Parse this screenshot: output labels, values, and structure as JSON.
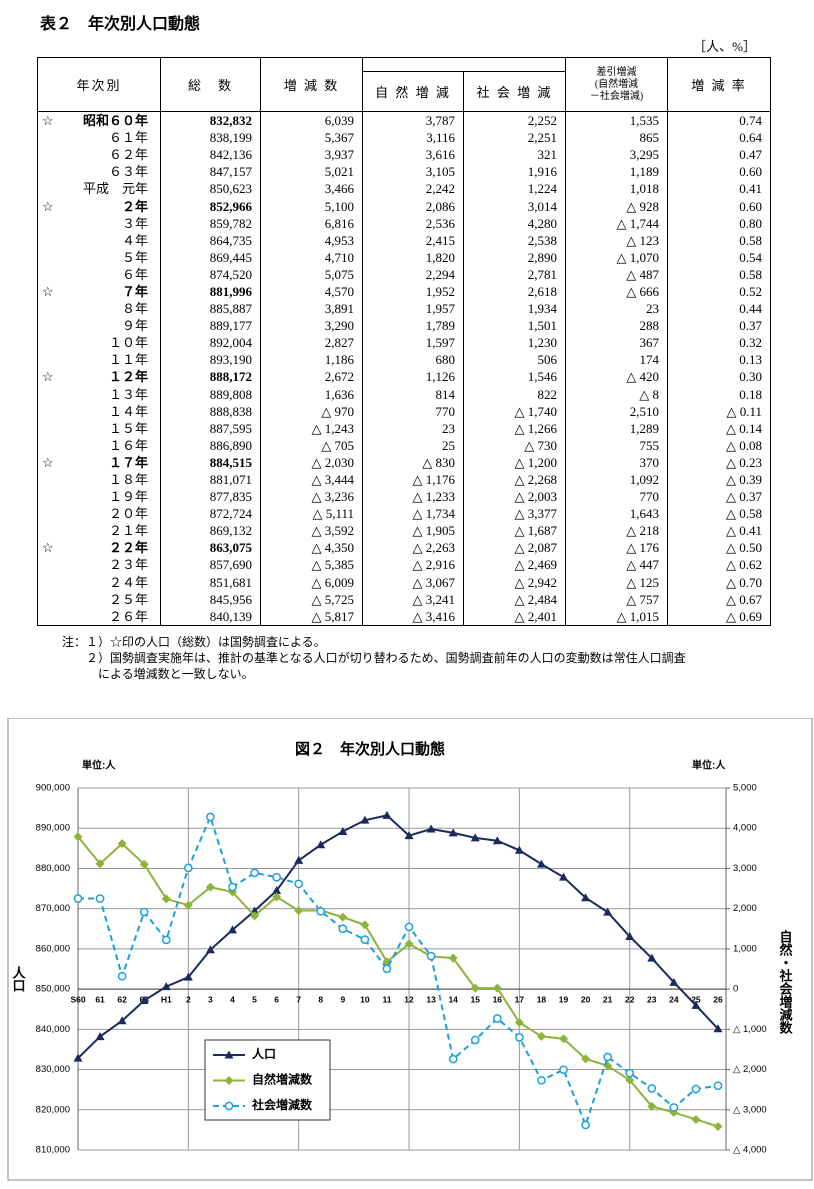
{
  "table": {
    "title": "表２　年次別人口動態",
    "unit": "［人、%］",
    "headers": {
      "year": "年次別",
      "total": "総　数",
      "change": "増 減 数",
      "natural": "自 然 増 減",
      "social": "社 会 増 減",
      "diff": [
        "差引増減",
        "(自然増減",
        "－社会増減)"
      ],
      "rate": "増 減 率"
    },
    "rows": [
      {
        "mark": "☆",
        "year": "昭和６０年",
        "cells": [
          "832,832",
          "6,039",
          "3,787",
          "2,252",
          "1,535",
          "0.74"
        ]
      },
      {
        "year": "６１年",
        "cells": [
          "838,199",
          "5,367",
          "3,116",
          "2,251",
          "865",
          "0.64"
        ]
      },
      {
        "year": "６２年",
        "cells": [
          "842,136",
          "3,937",
          "3,616",
          "321",
          "3,295",
          "0.47"
        ]
      },
      {
        "year": "６３年",
        "cells": [
          "847,157",
          "5,021",
          "3,105",
          "1,916",
          "1,189",
          "0.60"
        ]
      },
      {
        "year": "平成　元年",
        "cells": [
          "850,623",
          "3,466",
          "2,242",
          "1,224",
          "1,018",
          "0.41"
        ]
      },
      {
        "mark": "☆",
        "year": "２年",
        "cells": [
          "852,966",
          "5,100",
          "2,086",
          "3,014",
          "△ 928",
          "0.60"
        ]
      },
      {
        "year": "３年",
        "cells": [
          "859,782",
          "6,816",
          "2,536",
          "4,280",
          "△ 1,744",
          "0.80"
        ]
      },
      {
        "year": "４年",
        "cells": [
          "864,735",
          "4,953",
          "2,415",
          "2,538",
          "△ 123",
          "0.58"
        ]
      },
      {
        "year": "５年",
        "cells": [
          "869,445",
          "4,710",
          "1,820",
          "2,890",
          "△ 1,070",
          "0.54"
        ]
      },
      {
        "year": "６年",
        "cells": [
          "874,520",
          "5,075",
          "2,294",
          "2,781",
          "△ 487",
          "0.58"
        ]
      },
      {
        "mark": "☆",
        "year": "７年",
        "cells": [
          "881,996",
          "4,570",
          "1,952",
          "2,618",
          "△ 666",
          "0.52"
        ]
      },
      {
        "year": "８年",
        "cells": [
          "885,887",
          "3,891",
          "1,957",
          "1,934",
          "23",
          "0.44"
        ]
      },
      {
        "year": "９年",
        "cells": [
          "889,177",
          "3,290",
          "1,789",
          "1,501",
          "288",
          "0.37"
        ]
      },
      {
        "year": "１０年",
        "cells": [
          "892,004",
          "2,827",
          "1,597",
          "1,230",
          "367",
          "0.32"
        ]
      },
      {
        "year": "１１年",
        "cells": [
          "893,190",
          "1,186",
          "680",
          "506",
          "174",
          "0.13"
        ]
      },
      {
        "mark": "☆",
        "year": "１２年",
        "cells": [
          "888,172",
          "2,672",
          "1,126",
          "1,546",
          "△ 420",
          "0.30"
        ]
      },
      {
        "year": "１３年",
        "cells": [
          "889,808",
          "1,636",
          "814",
          "822",
          "△ 8",
          "0.18"
        ]
      },
      {
        "year": "１４年",
        "cells": [
          "888,838",
          "△ 970",
          "770",
          "△ 1,740",
          "2,510",
          "△ 0.11"
        ]
      },
      {
        "year": "１５年",
        "cells": [
          "887,595",
          "△ 1,243",
          "23",
          "△ 1,266",
          "1,289",
          "△ 0.14"
        ]
      },
      {
        "year": "１６年",
        "cells": [
          "886,890",
          "△ 705",
          "25",
          "△ 730",
          "755",
          "△ 0.08"
        ]
      },
      {
        "mark": "☆",
        "year": "１７年",
        "cells": [
          "884,515",
          "△ 2,030",
          "△ 830",
          "△ 1,200",
          "370",
          "△ 0.23"
        ]
      },
      {
        "year": "１８年",
        "cells": [
          "881,071",
          "△ 3,444",
          "△ 1,176",
          "△ 2,268",
          "1,092",
          "△ 0.39"
        ]
      },
      {
        "year": "１９年",
        "cells": [
          "877,835",
          "△ 3,236",
          "△ 1,233",
          "△ 2,003",
          "770",
          "△ 0.37"
        ]
      },
      {
        "year": "２０年",
        "cells": [
          "872,724",
          "△ 5,111",
          "△ 1,734",
          "△ 3,377",
          "1,643",
          "△ 0.58"
        ]
      },
      {
        "year": "２１年",
        "cells": [
          "869,132",
          "△ 3,592",
          "△ 1,905",
          "△ 1,687",
          "△ 218",
          "△ 0.41"
        ]
      },
      {
        "mark": "☆",
        "year": "２２年",
        "cells": [
          "863,075",
          "△ 4,350",
          "△ 2,263",
          "△ 2,087",
          "△ 176",
          "△ 0.50"
        ]
      },
      {
        "year": "２３年",
        "cells": [
          "857,690",
          "△ 5,385",
          "△ 2,916",
          "△ 2,469",
          "△ 447",
          "△ 0.62"
        ]
      },
      {
        "year": "２４年",
        "cells": [
          "851,681",
          "△ 6,009",
          "△ 3,067",
          "△ 2,942",
          "△ 125",
          "△ 0.70"
        ]
      },
      {
        "year": "２５年",
        "cells": [
          "845,956",
          "△ 5,725",
          "△ 3,241",
          "△ 2,484",
          "△ 757",
          "△ 0.67"
        ]
      },
      {
        "year": "２６年",
        "cells": [
          "840,139",
          "△ 5,817",
          "△ 3,416",
          "△ 2,401",
          "△ 1,015",
          "△ 0.69"
        ]
      }
    ],
    "notes": [
      "注：１）☆印の人口（総数）は国勢調査による。",
      "　　２）国勢調査実施年は、推計の基準となる人口が切り替わるため、国勢調査前年の人口の変動数は常住人口調査",
      "　　　による増減数と一致しない。"
    ]
  },
  "chart_data": {
    "type": "line",
    "title": "図２　年次別人口動態",
    "y_unit": "単位:人",
    "y2_unit": "単位:人",
    "ylabel": "人口",
    "y2label": "自然・社会増減数",
    "categories": [
      "S60",
      "61",
      "62",
      "63",
      "H1",
      "2",
      "3",
      "4",
      "5",
      "6",
      "7",
      "8",
      "9",
      "10",
      "11",
      "12",
      "13",
      "14",
      "15",
      "16",
      "17",
      "18",
      "19",
      "20",
      "21",
      "22",
      "23",
      "24",
      "25",
      "26"
    ],
    "ylim": [
      810000,
      900000
    ],
    "yticks": [
      {
        "value": 810000,
        "label": "810,000"
      },
      {
        "value": 820000,
        "label": "820,000"
      },
      {
        "value": 830000,
        "label": "830,000"
      },
      {
        "value": 840000,
        "label": "840,000"
      },
      {
        "value": 850000,
        "label": "850,000"
      },
      {
        "value": 860000,
        "label": "860,000"
      },
      {
        "value": 870000,
        "label": "870,000"
      },
      {
        "value": 880000,
        "label": "880,000"
      },
      {
        "value": 890000,
        "label": "890,000"
      },
      {
        "value": 900000,
        "label": "900,000"
      }
    ],
    "y2lim": [
      -4000,
      5000
    ],
    "y2ticks": [
      {
        "value": -4000,
        "label": "△ 4,000"
      },
      {
        "value": -3000,
        "label": "△ 3,000"
      },
      {
        "value": -2000,
        "label": "△ 2,000"
      },
      {
        "value": -1000,
        "label": "△ 1,000"
      },
      0,
      {
        "value": 1000,
        "label": "1,000"
      },
      {
        "value": 2000,
        "label": "2,000"
      },
      {
        "value": 3000,
        "label": "3,000"
      },
      {
        "value": 4000,
        "label": "4,000"
      },
      {
        "value": 5000,
        "label": "5,000"
      }
    ],
    "grid": true,
    "series": [
      {
        "name": "人口",
        "color": "#1b2a5e",
        "marker": "triangle",
        "values": [
          832832,
          838199,
          842136,
          847157,
          850623,
          852966,
          859782,
          864735,
          869445,
          874520,
          881996,
          885887,
          889177,
          892004,
          893190,
          888172,
          889808,
          888838,
          887595,
          886890,
          884515,
          881071,
          877835,
          872724,
          869132,
          863075,
          857690,
          851681,
          845956,
          840139
        ]
      },
      {
        "name": "自然増減数",
        "color": "#8db33a",
        "marker": "diamond",
        "axis": "y2",
        "values": [
          3787,
          3116,
          3616,
          3105,
          2242,
          2086,
          2536,
          2415,
          1820,
          2294,
          1952,
          1957,
          1789,
          1597,
          680,
          1126,
          814,
          770,
          23,
          25,
          -830,
          -1176,
          -1233,
          -1734,
          -1905,
          -2263,
          -2916,
          -3067,
          -3241,
          -3416
        ]
      },
      {
        "name": "社会増減数",
        "color": "#1ba1d8",
        "marker": "circle",
        "dashed": true,
        "axis": "y2",
        "values": [
          2252,
          2251,
          321,
          1916,
          1224,
          3014,
          4280,
          2538,
          2890,
          2781,
          2618,
          1934,
          1501,
          1230,
          506,
          1546,
          822,
          -1740,
          -1266,
          -730,
          -1200,
          -2268,
          -2003,
          -3377,
          -1687,
          -2087,
          -2469,
          -2942,
          -2484,
          -2401
        ]
      }
    ]
  }
}
